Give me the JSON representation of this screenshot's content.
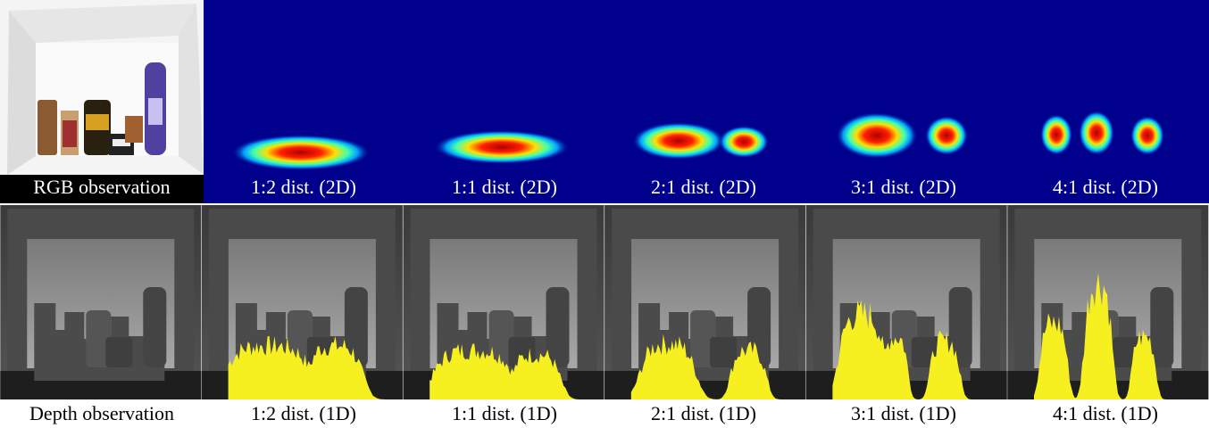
{
  "top_labels": [
    "RGB observation",
    "1:2 dist. (2D)",
    "1:1 dist. (2D)",
    "2:1 dist. (2D)",
    "3:1 dist. (2D)",
    "4:1 dist. (2D)"
  ],
  "bottom_labels": [
    "Depth observation",
    "1:2 dist. (1D)",
    "1:1 dist. (1D)",
    "2:1 dist. (1D)",
    "3:1 dist. (1D)",
    "4:1 dist. (1D)"
  ]
}
